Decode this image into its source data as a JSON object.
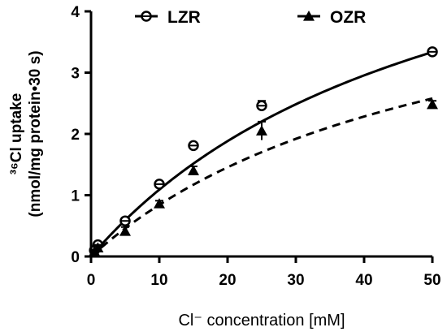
{
  "chart_data": {
    "type": "scatter",
    "xlabel": "Cl⁻ concentration [mM]",
    "ylabel_line1": "³⁶Cl uptake",
    "ylabel_line2": "(nmol/mg protein•30 s)",
    "xlim": [
      0,
      50
    ],
    "ylim": [
      0,
      4
    ],
    "xticks": [
      0,
      10,
      20,
      30,
      40,
      50
    ],
    "yticks": [
      0,
      1,
      2,
      3,
      4
    ],
    "grid": false,
    "legend_position": "top",
    "series": [
      {
        "name": "LZR",
        "marker": "open-circle",
        "line_style": "solid",
        "color": "#000000",
        "x": [
          0.5,
          1,
          5,
          10,
          15,
          25,
          50
        ],
        "y": [
          0.1,
          0.19,
          0.58,
          1.18,
          1.81,
          2.46,
          3.34
        ],
        "err": [
          0.04,
          0.04,
          0.04,
          0.04,
          0.04,
          0.08,
          0.04
        ],
        "fit": {
          "model": "michaelis-menten",
          "vmax": 6.87,
          "km": 53
        }
      },
      {
        "name": "OZR",
        "marker": "filled-triangle",
        "line_style": "dashed",
        "color": "#000000",
        "x": [
          0.5,
          1,
          5,
          10,
          15,
          25,
          50
        ],
        "y": [
          0.08,
          0.14,
          0.41,
          0.86,
          1.4,
          2.05,
          2.48
        ],
        "err": [
          0.03,
          0.03,
          0.07,
          0.05,
          0.07,
          0.15,
          0.06
        ],
        "fit": {
          "model": "michaelis-menten",
          "vmax": 5.31,
          "km": 53
        }
      }
    ]
  }
}
